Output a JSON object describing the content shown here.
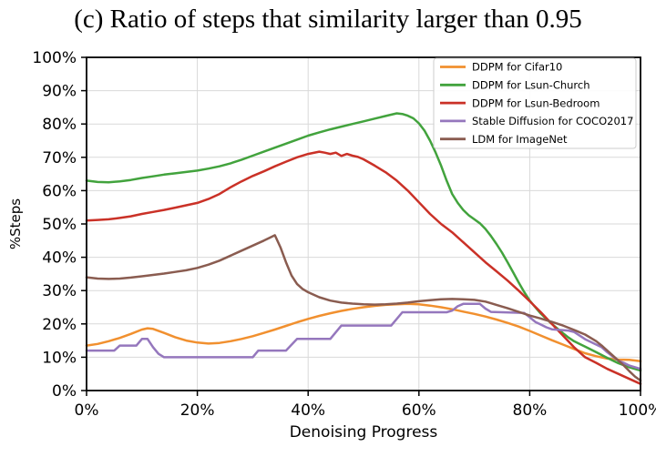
{
  "chart_data": {
    "type": "line",
    "title": "(c) Ratio of steps that similarity larger than 0.95",
    "xlabel": "Denoising Progress",
    "ylabel": "%Steps",
    "xlim": [
      0,
      100
    ],
    "ylim": [
      0,
      100
    ],
    "grid": true,
    "legend_position": "top-right",
    "x_tick_values": [
      0,
      20,
      40,
      60,
      80,
      100
    ],
    "x_tick_labels": [
      "0%",
      "20%",
      "40%",
      "60%",
      "80%",
      "100%"
    ],
    "y_tick_values": [
      0,
      10,
      20,
      30,
      40,
      50,
      60,
      70,
      80,
      90,
      100
    ],
    "y_tick_labels": [
      "0%",
      "10%",
      "20%",
      "30%",
      "40%",
      "50%",
      "60%",
      "70%",
      "80%",
      "90%",
      "100%"
    ],
    "series": [
      {
        "name": "DDPM for Cifar10",
        "color": "#f1902f",
        "points": [
          [
            0,
            13.5
          ],
          [
            2,
            14
          ],
          [
            4,
            14.8
          ],
          [
            6,
            15.8
          ],
          [
            8,
            17
          ],
          [
            10,
            18.3
          ],
          [
            11,
            18.7
          ],
          [
            12,
            18.5
          ],
          [
            14,
            17.3
          ],
          [
            16,
            16
          ],
          [
            18,
            15
          ],
          [
            20,
            14.4
          ],
          [
            22,
            14.1
          ],
          [
            24,
            14.3
          ],
          [
            26,
            14.8
          ],
          [
            28,
            15.5
          ],
          [
            30,
            16.3
          ],
          [
            32,
            17.3
          ],
          [
            34,
            18.3
          ],
          [
            36,
            19.4
          ],
          [
            38,
            20.5
          ],
          [
            40,
            21.5
          ],
          [
            42,
            22.4
          ],
          [
            44,
            23.2
          ],
          [
            46,
            23.9
          ],
          [
            48,
            24.5
          ],
          [
            50,
            25
          ],
          [
            52,
            25.4
          ],
          [
            54,
            25.7
          ],
          [
            56,
            25.9
          ],
          [
            58,
            26
          ],
          [
            60,
            25.9
          ],
          [
            62,
            25.5
          ],
          [
            64,
            25
          ],
          [
            66,
            24.4
          ],
          [
            68,
            23.7
          ],
          [
            70,
            23
          ],
          [
            72,
            22.2
          ],
          [
            74,
            21.3
          ],
          [
            76,
            20.3
          ],
          [
            78,
            19.2
          ],
          [
            80,
            17.9
          ],
          [
            82,
            16.5
          ],
          [
            84,
            15.1
          ],
          [
            86,
            13.8
          ],
          [
            88,
            12.5
          ],
          [
            90,
            11.2
          ],
          [
            92,
            10.3
          ],
          [
            94,
            9.6
          ],
          [
            96,
            9.3
          ],
          [
            98,
            9.2
          ],
          [
            100,
            8.8
          ]
        ]
      },
      {
        "name": "DDPM for Lsun-Church",
        "color": "#42a33d",
        "points": [
          [
            0,
            63
          ],
          [
            2,
            62.6
          ],
          [
            4,
            62.5
          ],
          [
            6,
            62.8
          ],
          [
            8,
            63.2
          ],
          [
            10,
            63.8
          ],
          [
            12,
            64.3
          ],
          [
            14,
            64.8
          ],
          [
            16,
            65.2
          ],
          [
            18,
            65.6
          ],
          [
            20,
            66
          ],
          [
            22,
            66.6
          ],
          [
            24,
            67.3
          ],
          [
            26,
            68.2
          ],
          [
            28,
            69.3
          ],
          [
            30,
            70.5
          ],
          [
            32,
            71.7
          ],
          [
            34,
            72.9
          ],
          [
            36,
            74.1
          ],
          [
            38,
            75.3
          ],
          [
            40,
            76.5
          ],
          [
            42,
            77.5
          ],
          [
            44,
            78.4
          ],
          [
            46,
            79.2
          ],
          [
            48,
            80
          ],
          [
            50,
            80.8
          ],
          [
            52,
            81.6
          ],
          [
            54,
            82.4
          ],
          [
            56,
            83.2
          ],
          [
            57,
            83
          ],
          [
            58,
            82.5
          ],
          [
            59,
            81.7
          ],
          [
            60,
            80.2
          ],
          [
            61,
            78
          ],
          [
            62,
            75
          ],
          [
            63,
            71.5
          ],
          [
            64,
            67.5
          ],
          [
            65,
            63
          ],
          [
            66,
            59
          ],
          [
            67,
            56.3
          ],
          [
            68,
            54.2
          ],
          [
            69,
            52.6
          ],
          [
            70,
            51.4
          ],
          [
            71,
            50.2
          ],
          [
            72,
            48.5
          ],
          [
            73,
            46.4
          ],
          [
            74,
            44
          ],
          [
            75,
            41.4
          ],
          [
            76,
            38.5
          ],
          [
            77,
            35.5
          ],
          [
            78,
            32.5
          ],
          [
            79,
            29.6
          ],
          [
            80,
            27
          ],
          [
            81,
            25
          ],
          [
            82,
            23.1
          ],
          [
            83,
            21.5
          ],
          [
            84,
            20
          ],
          [
            85,
            18.6
          ],
          [
            86,
            17.2
          ],
          [
            87,
            15.9
          ],
          [
            88,
            14.8
          ],
          [
            90,
            13.2
          ],
          [
            92,
            11.5
          ],
          [
            94,
            9.8
          ],
          [
            96,
            8.2
          ],
          [
            98,
            7
          ],
          [
            100,
            6
          ]
        ]
      },
      {
        "name": "DDPM for Lsun-Bedroom",
        "color": "#ca3127",
        "points": [
          [
            0,
            51
          ],
          [
            2,
            51.2
          ],
          [
            4,
            51.4
          ],
          [
            6,
            51.8
          ],
          [
            8,
            52.3
          ],
          [
            10,
            53
          ],
          [
            12,
            53.6
          ],
          [
            14,
            54.2
          ],
          [
            16,
            54.9
          ],
          [
            18,
            55.6
          ],
          [
            20,
            56.3
          ],
          [
            22,
            57.5
          ],
          [
            24,
            59
          ],
          [
            26,
            61
          ],
          [
            28,
            62.8
          ],
          [
            30,
            64.4
          ],
          [
            32,
            65.8
          ],
          [
            34,
            67.3
          ],
          [
            36,
            68.7
          ],
          [
            38,
            70
          ],
          [
            40,
            71
          ],
          [
            42,
            71.7
          ],
          [
            43,
            71.4
          ],
          [
            44,
            71
          ],
          [
            45,
            71.4
          ],
          [
            46,
            70.4
          ],
          [
            47,
            71
          ],
          [
            48,
            70.5
          ],
          [
            49,
            70.1
          ],
          [
            50,
            69.4
          ],
          [
            52,
            67.5
          ],
          [
            54,
            65.5
          ],
          [
            56,
            63
          ],
          [
            58,
            60
          ],
          [
            60,
            56.5
          ],
          [
            62,
            53
          ],
          [
            64,
            50
          ],
          [
            66,
            47.5
          ],
          [
            68,
            44.5
          ],
          [
            70,
            41.5
          ],
          [
            72,
            38.5
          ],
          [
            74,
            35.8
          ],
          [
            76,
            33
          ],
          [
            78,
            30
          ],
          [
            80,
            26.8
          ],
          [
            82,
            23.5
          ],
          [
            84,
            20
          ],
          [
            86,
            16.5
          ],
          [
            88,
            13
          ],
          [
            90,
            10
          ],
          [
            92,
            8.3
          ],
          [
            94,
            6.5
          ],
          [
            96,
            5
          ],
          [
            98,
            3.5
          ],
          [
            100,
            2
          ]
        ]
      },
      {
        "name": "Stable Diffusion for COCO2017",
        "color": "#9577bd",
        "points": [
          [
            0,
            12
          ],
          [
            5,
            12
          ],
          [
            6,
            13.5
          ],
          [
            9,
            13.5
          ],
          [
            10,
            15.5
          ],
          [
            11,
            15.5
          ],
          [
            12,
            13
          ],
          [
            13,
            11
          ],
          [
            14,
            10
          ],
          [
            30,
            10
          ],
          [
            31,
            12
          ],
          [
            36,
            12
          ],
          [
            38,
            15.5
          ],
          [
            44,
            15.5
          ],
          [
            46,
            19.5
          ],
          [
            55,
            19.5
          ],
          [
            57,
            23.5
          ],
          [
            65,
            23.5
          ],
          [
            66,
            24
          ],
          [
            67,
            25.3
          ],
          [
            68,
            26
          ],
          [
            71,
            26
          ],
          [
            72,
            24.6
          ],
          [
            73,
            23.6
          ],
          [
            79,
            23.3
          ],
          [
            80,
            22
          ],
          [
            81,
            20.6
          ],
          [
            82,
            19.8
          ],
          [
            83,
            19
          ],
          [
            84,
            18.4
          ],
          [
            87,
            18
          ],
          [
            88,
            17.6
          ],
          [
            89,
            16.5
          ],
          [
            90,
            15.4
          ],
          [
            92,
            13.8
          ],
          [
            93,
            13
          ],
          [
            94,
            11.5
          ],
          [
            95,
            10.2
          ],
          [
            96,
            9
          ],
          [
            97,
            8.3
          ],
          [
            98,
            7.5
          ],
          [
            100,
            6.5
          ]
        ]
      },
      {
        "name": "LDM for ImageNet",
        "color": "#8a5c50",
        "points": [
          [
            0,
            34
          ],
          [
            2,
            33.6
          ],
          [
            4,
            33.5
          ],
          [
            6,
            33.6
          ],
          [
            8,
            33.9
          ],
          [
            10,
            34.3
          ],
          [
            12,
            34.7
          ],
          [
            14,
            35.1
          ],
          [
            16,
            35.6
          ],
          [
            18,
            36.1
          ],
          [
            20,
            36.8
          ],
          [
            22,
            37.8
          ],
          [
            24,
            39
          ],
          [
            26,
            40.5
          ],
          [
            28,
            42
          ],
          [
            30,
            43.5
          ],
          [
            32,
            45
          ],
          [
            33,
            45.8
          ],
          [
            34,
            46.6
          ],
          [
            35,
            43
          ],
          [
            36,
            38.5
          ],
          [
            37,
            34.5
          ],
          [
            38,
            32
          ],
          [
            39,
            30.5
          ],
          [
            40,
            29.5
          ],
          [
            42,
            28
          ],
          [
            44,
            27
          ],
          [
            46,
            26.4
          ],
          [
            48,
            26.1
          ],
          [
            50,
            25.9
          ],
          [
            52,
            25.8
          ],
          [
            54,
            25.9
          ],
          [
            56,
            26.1
          ],
          [
            58,
            26.4
          ],
          [
            60,
            26.8
          ],
          [
            62,
            27.1
          ],
          [
            64,
            27.4
          ],
          [
            66,
            27.5
          ],
          [
            68,
            27.4
          ],
          [
            70,
            27.2
          ],
          [
            72,
            26.7
          ],
          [
            73,
            26.2
          ],
          [
            74,
            25.7
          ],
          [
            76,
            24.7
          ],
          [
            78,
            23.6
          ],
          [
            80,
            22.5
          ],
          [
            82,
            21.6
          ],
          [
            84,
            20.6
          ],
          [
            86,
            19.5
          ],
          [
            88,
            18.2
          ],
          [
            90,
            16.8
          ],
          [
            92,
            14.8
          ],
          [
            93,
            13.5
          ],
          [
            94,
            12
          ],
          [
            95,
            10.5
          ],
          [
            96,
            9
          ],
          [
            97,
            7.5
          ],
          [
            98,
            5.8
          ],
          [
            99,
            4.2
          ],
          [
            100,
            3
          ]
        ]
      }
    ],
    "style_colors": {
      "grid": "#d9d9d9",
      "spine": "#000000",
      "tick_label": "#000000",
      "legend_border": "#cccccc",
      "legend_background": "#ffffff"
    }
  }
}
